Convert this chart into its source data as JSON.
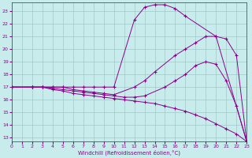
{
  "xlabel": "Windchill (Refroidissement éolien,°C)",
  "xlim": [
    0,
    23
  ],
  "ylim": [
    12.7,
    23.7
  ],
  "xticks": [
    0,
    1,
    2,
    3,
    4,
    5,
    6,
    7,
    8,
    9,
    10,
    11,
    12,
    13,
    14,
    15,
    16,
    17,
    18,
    19,
    20,
    21,
    22,
    23
  ],
  "yticks": [
    13,
    14,
    15,
    16,
    17,
    18,
    19,
    20,
    21,
    22,
    23
  ],
  "background_color": "#c8ecec",
  "line_color": "#8b008b",
  "grid_color": "#a0c8c8",
  "series": [
    {
      "x": [
        0,
        2,
        3,
        4,
        5,
        6,
        7,
        8,
        9,
        10,
        12,
        13,
        14,
        15,
        16,
        17,
        20,
        23
      ],
      "y": [
        17.0,
        17.0,
        17.0,
        17.0,
        17.0,
        17.0,
        17.0,
        17.0,
        17.0,
        17.0,
        22.3,
        23.3,
        23.5,
        23.5,
        23.2,
        22.6,
        21.0,
        12.7
      ]
    },
    {
      "x": [
        0,
        2,
        3,
        4,
        5,
        6,
        7,
        8,
        9,
        10,
        12,
        13,
        14,
        16,
        17,
        18,
        19,
        20,
        21,
        22,
        23
      ],
      "y": [
        17.0,
        17.0,
        17.0,
        17.0,
        17.0,
        16.8,
        16.7,
        16.6,
        16.5,
        16.4,
        17.0,
        17.5,
        18.2,
        19.5,
        20.0,
        20.5,
        21.0,
        21.0,
        20.8,
        19.5,
        12.7
      ]
    },
    {
      "x": [
        0,
        2,
        3,
        4,
        5,
        6,
        7,
        8,
        9,
        10,
        11,
        12,
        13,
        15,
        16,
        17,
        18,
        19,
        20,
        21,
        22,
        23
      ],
      "y": [
        17.0,
        17.0,
        17.0,
        16.9,
        16.8,
        16.7,
        16.6,
        16.5,
        16.4,
        16.3,
        16.2,
        16.2,
        16.3,
        17.0,
        17.5,
        18.0,
        18.7,
        19.0,
        18.8,
        17.5,
        15.5,
        12.7
      ]
    },
    {
      "x": [
        0,
        2,
        3,
        4,
        5,
        6,
        7,
        8,
        9,
        10,
        11,
        12,
        13,
        14,
        15,
        16,
        17,
        18,
        19,
        20,
        21,
        22,
        23
      ],
      "y": [
        17.0,
        17.0,
        17.0,
        16.8,
        16.7,
        16.5,
        16.4,
        16.3,
        16.2,
        16.1,
        16.0,
        15.9,
        15.8,
        15.7,
        15.5,
        15.3,
        15.1,
        14.8,
        14.5,
        14.1,
        13.7,
        13.3,
        12.7
      ]
    }
  ]
}
